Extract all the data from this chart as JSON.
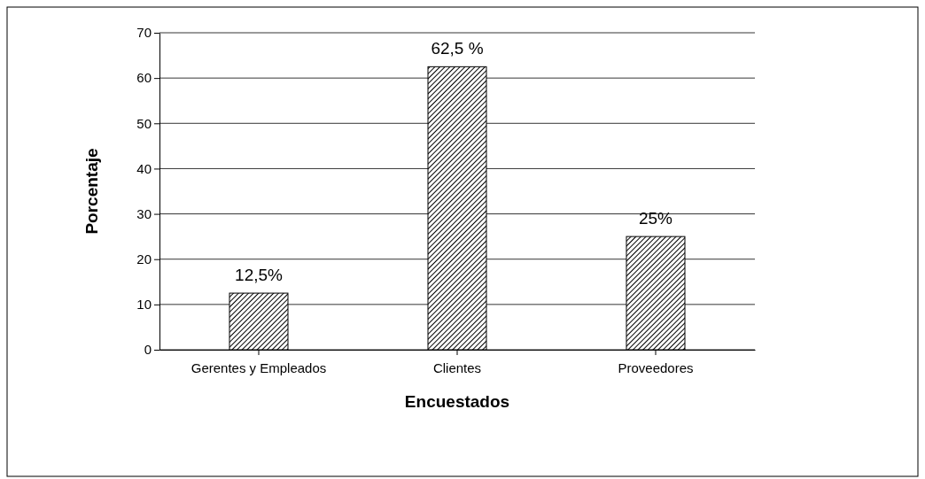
{
  "chart_data": {
    "type": "bar",
    "xlabel": "Encuestados",
    "ylabel": "Porcentaje",
    "categories": [
      "Gerentes y Empleados",
      "Clientes",
      "Proveedores"
    ],
    "values": [
      12.5,
      62.5,
      25
    ],
    "value_labels": [
      "12,5%",
      "62,5 %",
      "25%"
    ],
    "color": "#000000",
    "ylim": [
      0,
      70
    ],
    "yticks": [
      0,
      10,
      20,
      30,
      40,
      50,
      60,
      70
    ],
    "grid": "y"
  }
}
